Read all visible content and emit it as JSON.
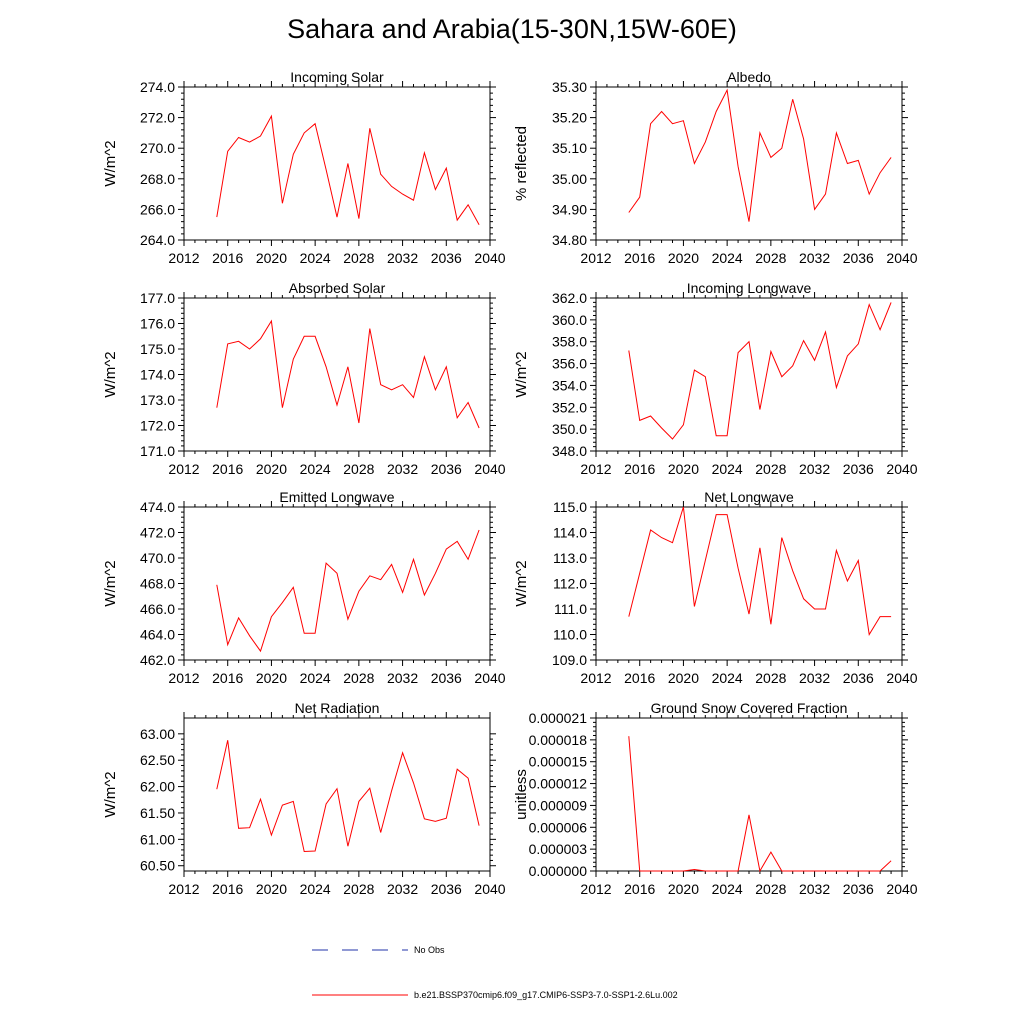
{
  "page": {
    "title": "Sahara and Arabia(15-30N,15W-60E)"
  },
  "legend": [
    {
      "label": "No Obs",
      "color": "#2233aa",
      "style": "dashed"
    },
    {
      "label": "b.e21.BSSP370cmip6.f09_g17.CMIP6-SSP3-7.0-SSP1-2.6Lu.002",
      "color": "#ff0000",
      "style": "solid"
    }
  ],
  "chart_data": [
    {
      "type": "line",
      "title": "Incoming Solar",
      "ylabel": "W/m^2",
      "xlim": [
        2012,
        2040
      ],
      "ylim": [
        264,
        274
      ],
      "xticks": [
        "2012",
        "2016",
        "2020",
        "2024",
        "2028",
        "2032",
        "2036",
        "2040"
      ],
      "yticks": [
        "264.0",
        "266.0",
        "268.0",
        "270.0",
        "272.0",
        "274.0"
      ],
      "series": [
        {
          "color": "#ff0000",
          "x": [
            2015,
            2016,
            2017,
            2018,
            2019,
            2020,
            2021,
            2022,
            2023,
            2024,
            2025,
            2026,
            2027,
            2028,
            2029,
            2030,
            2031,
            2032,
            2033,
            2034,
            2035,
            2036,
            2037,
            2038,
            2039
          ],
          "values": [
            265.5,
            269.8,
            270.7,
            270.4,
            270.8,
            272.1,
            266.4,
            269.6,
            271.0,
            271.6,
            268.6,
            265.5,
            269.0,
            265.4,
            271.3,
            268.3,
            267.5,
            267.0,
            266.6,
            269.7,
            267.3,
            268.7,
            265.3,
            266.3,
            265.0
          ]
        }
      ]
    },
    {
      "type": "line",
      "title": "Albedo",
      "ylabel": "% reflected",
      "xlim": [
        2012,
        2040
      ],
      "ylim": [
        34.8,
        35.3
      ],
      "xticks": [
        "2012",
        "2016",
        "2020",
        "2024",
        "2028",
        "2032",
        "2036",
        "2040"
      ],
      "yticks": [
        "34.80",
        "34.90",
        "35.00",
        "35.10",
        "35.20",
        "35.30"
      ],
      "series": [
        {
          "color": "#ff0000",
          "x": [
            2015,
            2016,
            2017,
            2018,
            2019,
            2020,
            2021,
            2022,
            2023,
            2024,
            2025,
            2026,
            2027,
            2028,
            2029,
            2030,
            2031,
            2032,
            2033,
            2034,
            2035,
            2036,
            2037,
            2038,
            2039
          ],
          "values": [
            34.89,
            34.94,
            35.18,
            35.22,
            35.18,
            35.19,
            35.05,
            35.12,
            35.22,
            35.29,
            35.04,
            34.86,
            35.15,
            35.07,
            35.1,
            35.26,
            35.13,
            34.9,
            34.95,
            35.15,
            35.05,
            35.06,
            34.95,
            35.02,
            35.07
          ]
        }
      ]
    },
    {
      "type": "line",
      "title": "Absorbed Solar",
      "ylabel": "W/m^2",
      "xlim": [
        2012,
        2040
      ],
      "ylim": [
        171,
        177
      ],
      "xticks": [
        "2012",
        "2016",
        "2020",
        "2024",
        "2028",
        "2032",
        "2036",
        "2040"
      ],
      "yticks": [
        "171.0",
        "172.0",
        "173.0",
        "174.0",
        "175.0",
        "176.0",
        "177.0"
      ],
      "series": [
        {
          "color": "#ff0000",
          "x": [
            2015,
            2016,
            2017,
            2018,
            2019,
            2020,
            2021,
            2022,
            2023,
            2024,
            2025,
            2026,
            2027,
            2028,
            2029,
            2030,
            2031,
            2032,
            2033,
            2034,
            2035,
            2036,
            2037,
            2038,
            2039
          ],
          "values": [
            172.7,
            175.2,
            175.3,
            175.0,
            175.4,
            176.1,
            172.7,
            174.6,
            175.5,
            175.5,
            174.3,
            172.8,
            174.3,
            172.1,
            175.8,
            173.6,
            173.4,
            173.6,
            173.1,
            174.7,
            173.4,
            174.3,
            172.3,
            172.9,
            171.9
          ]
        }
      ]
    },
    {
      "type": "line",
      "title": "Incoming Longwave",
      "ylabel": "W/m^2",
      "xlim": [
        2012,
        2040
      ],
      "ylim": [
        348,
        362
      ],
      "xticks": [
        "2012",
        "2016",
        "2020",
        "2024",
        "2028",
        "2032",
        "2036",
        "2040"
      ],
      "yticks": [
        "348.0",
        "350.0",
        "352.0",
        "354.0",
        "356.0",
        "358.0",
        "360.0",
        "362.0"
      ],
      "series": [
        {
          "color": "#ff0000",
          "x": [
            2015,
            2016,
            2017,
            2018,
            2019,
            2020,
            2021,
            2022,
            2023,
            2024,
            2025,
            2026,
            2027,
            2028,
            2029,
            2030,
            2031,
            2032,
            2033,
            2034,
            2035,
            2036,
            2037,
            2038,
            2039
          ],
          "values": [
            357.2,
            350.8,
            351.2,
            350.1,
            349.1,
            350.4,
            355.4,
            354.8,
            349.4,
            349.4,
            357.0,
            358.0,
            351.8,
            357.1,
            354.8,
            355.8,
            358.1,
            356.3,
            358.9,
            353.8,
            356.7,
            357.8,
            361.4,
            359.1,
            361.6
          ]
        }
      ]
    },
    {
      "type": "line",
      "title": "Emitted Longwave",
      "ylabel": "W/m^2",
      "xlim": [
        2012,
        2040
      ],
      "ylim": [
        462,
        474
      ],
      "xticks": [
        "2012",
        "2016",
        "2020",
        "2024",
        "2028",
        "2032",
        "2036",
        "2040"
      ],
      "yticks": [
        "462.0",
        "464.0",
        "466.0",
        "468.0",
        "470.0",
        "472.0",
        "474.0"
      ],
      "series": [
        {
          "color": "#ff0000",
          "x": [
            2015,
            2016,
            2017,
            2018,
            2019,
            2020,
            2021,
            2022,
            2023,
            2024,
            2025,
            2026,
            2027,
            2028,
            2029,
            2030,
            2031,
            2032,
            2033,
            2034,
            2035,
            2036,
            2037,
            2038,
            2039
          ],
          "values": [
            467.9,
            463.2,
            465.3,
            463.9,
            462.7,
            465.4,
            466.5,
            467.7,
            464.1,
            464.1,
            469.6,
            468.8,
            465.2,
            467.4,
            468.6,
            468.3,
            469.5,
            467.3,
            469.9,
            467.1,
            468.8,
            470.7,
            471.3,
            469.9,
            472.2
          ]
        }
      ]
    },
    {
      "type": "line",
      "title": "Net Longwave",
      "ylabel": "W/m^2",
      "xlim": [
        2012,
        2040
      ],
      "ylim": [
        109,
        115
      ],
      "xticks": [
        "2012",
        "2016",
        "2020",
        "2024",
        "2028",
        "2032",
        "2036",
        "2040"
      ],
      "yticks": [
        "109.0",
        "110.0",
        "111.0",
        "112.0",
        "113.0",
        "114.0",
        "115.0"
      ],
      "series": [
        {
          "color": "#ff0000",
          "x": [
            2015,
            2016,
            2017,
            2018,
            2019,
            2020,
            2021,
            2022,
            2023,
            2024,
            2025,
            2026,
            2027,
            2028,
            2029,
            2030,
            2031,
            2032,
            2033,
            2034,
            2035,
            2036,
            2037,
            2038,
            2039
          ],
          "values": [
            110.7,
            112.4,
            114.1,
            113.8,
            113.6,
            115.0,
            111.1,
            112.9,
            114.7,
            114.7,
            112.6,
            110.8,
            113.4,
            110.4,
            113.8,
            112.5,
            111.4,
            111.0,
            111.0,
            113.3,
            112.1,
            112.9,
            110.0,
            110.7,
            110.7
          ]
        }
      ]
    },
    {
      "type": "line",
      "title": "Net Radiation",
      "ylabel": "W/m^2",
      "xlim": [
        2012,
        2040
      ],
      "ylim": [
        60.4,
        63.3
      ],
      "xticks": [
        "2012",
        "2016",
        "2020",
        "2024",
        "2028",
        "2032",
        "2036",
        "2040"
      ],
      "yticks": [
        "60.50",
        "61.00",
        "61.50",
        "62.00",
        "62.50",
        "63.00"
      ],
      "ytickvals": [
        60.5,
        61.0,
        61.5,
        62.0,
        62.5,
        63.0
      ],
      "series": [
        {
          "color": "#ff0000",
          "x": [
            2015,
            2016,
            2017,
            2018,
            2019,
            2020,
            2021,
            2022,
            2023,
            2024,
            2025,
            2026,
            2027,
            2028,
            2029,
            2030,
            2031,
            2032,
            2033,
            2034,
            2035,
            2036,
            2037,
            2038,
            2039
          ],
          "values": [
            61.95,
            62.88,
            61.21,
            61.22,
            61.76,
            61.08,
            61.65,
            61.72,
            60.77,
            60.78,
            61.67,
            61.96,
            60.87,
            61.72,
            61.97,
            61.13,
            61.92,
            62.64,
            62.07,
            61.39,
            61.34,
            61.4,
            62.33,
            62.16,
            61.26
          ]
        }
      ]
    },
    {
      "type": "line",
      "title": "Ground Snow Covered Fraction",
      "ylabel": "unitless",
      "xlim": [
        2012,
        2040
      ],
      "ylim": [
        0,
        2.1e-05
      ],
      "xticks": [
        "2012",
        "2016",
        "2020",
        "2024",
        "2028",
        "2032",
        "2036",
        "2040"
      ],
      "yticks": [
        "0.000000",
        "0.000003",
        "0.000006",
        "0.000009",
        "0.000012",
        "0.000015",
        "0.000018",
        "0.000021"
      ],
      "series": [
        {
          "color": "#ff0000",
          "x": [
            2015,
            2016,
            2017,
            2018,
            2019,
            2020,
            2021,
            2022,
            2023,
            2024,
            2025,
            2026,
            2027,
            2028,
            2029,
            2030,
            2031,
            2032,
            2033,
            2034,
            2035,
            2036,
            2037,
            2038,
            2039
          ],
          "values": [
            1.85e-05,
            0,
            0,
            0,
            0,
            0,
            2e-07,
            0,
            0,
            0,
            0,
            7.7e-06,
            0,
            2.6e-06,
            0,
            0,
            0,
            0,
            0,
            0,
            0,
            0,
            0,
            0,
            1.4e-06
          ]
        }
      ]
    }
  ]
}
